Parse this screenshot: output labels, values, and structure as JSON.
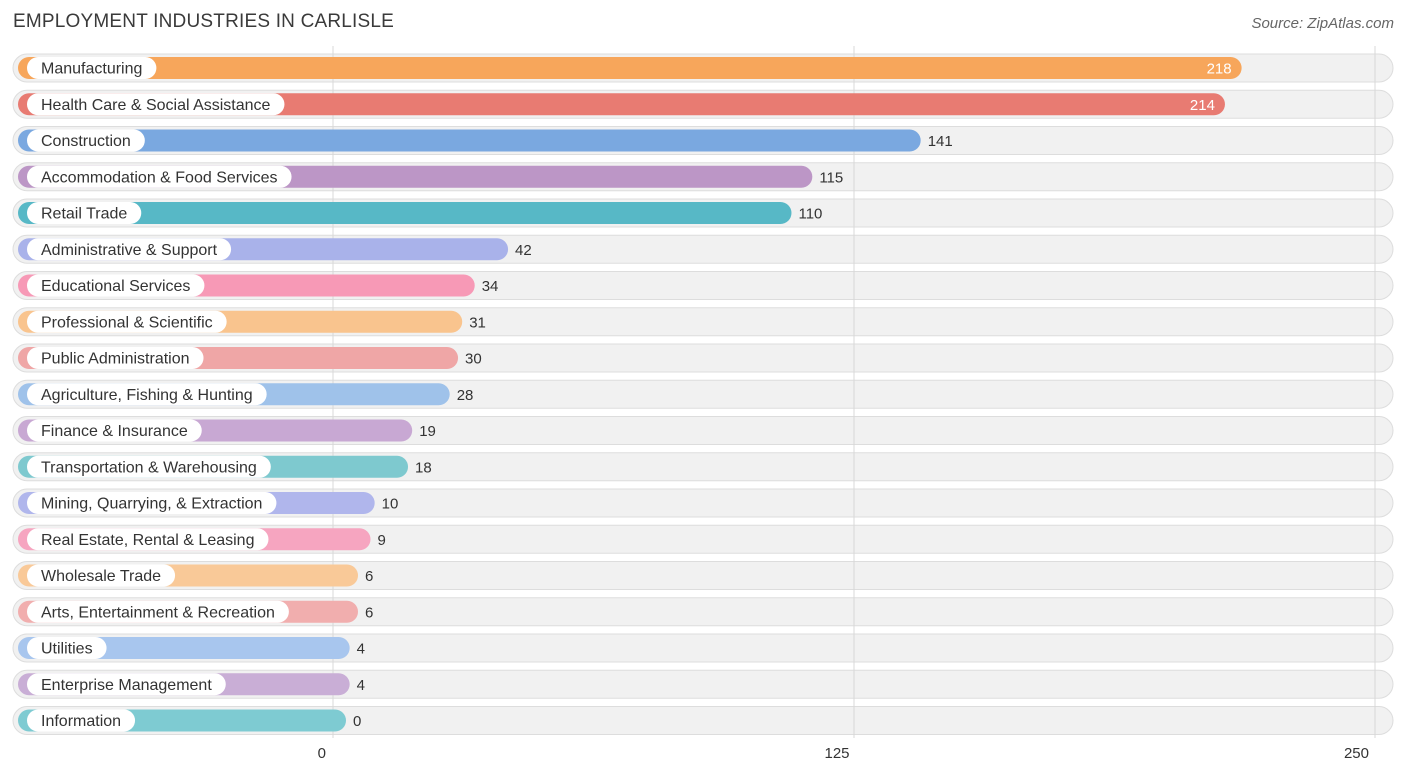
{
  "header": {
    "title": "EMPLOYMENT INDUSTRIES IN CARLISLE",
    "source": "Source: ZipAtlas.com"
  },
  "chart_data": {
    "type": "bar",
    "orientation": "horizontal",
    "title": "EMPLOYMENT INDUSTRIES IN CARLISLE",
    "xlim": [
      0,
      250
    ],
    "ticks": [
      0,
      125,
      250
    ],
    "grid": true,
    "categories": [
      "Manufacturing",
      "Health Care & Social Assistance",
      "Construction",
      "Accommodation & Food Services",
      "Retail Trade",
      "Administrative & Support",
      "Educational Services",
      "Professional & Scientific",
      "Public Administration",
      "Agriculture, Fishing & Hunting",
      "Finance & Insurance",
      "Transportation & Warehousing",
      "Mining, Quarrying, & Extraction",
      "Real Estate, Rental & Leasing",
      "Wholesale Trade",
      "Arts, Entertainment & Recreation",
      "Utilities",
      "Enterprise Management",
      "Information"
    ],
    "values": [
      218,
      214,
      141,
      115,
      110,
      42,
      34,
      31,
      30,
      28,
      19,
      18,
      10,
      9,
      6,
      6,
      4,
      4,
      0
    ],
    "colors": [
      "#f7a65b",
      "#e87b72",
      "#7aa8e0",
      "#bc96c6",
      "#57b8c6",
      "#a9b2ea",
      "#f799b6",
      "#f9c48e",
      "#efa6a6",
      "#9fc2ea",
      "#c8a8d3",
      "#7ec9cf",
      "#b0b6ec",
      "#f6a5c0",
      "#f9c998",
      "#f1aeae",
      "#a8c6ee",
      "#c9aed6",
      "#7ecbd2"
    ]
  }
}
